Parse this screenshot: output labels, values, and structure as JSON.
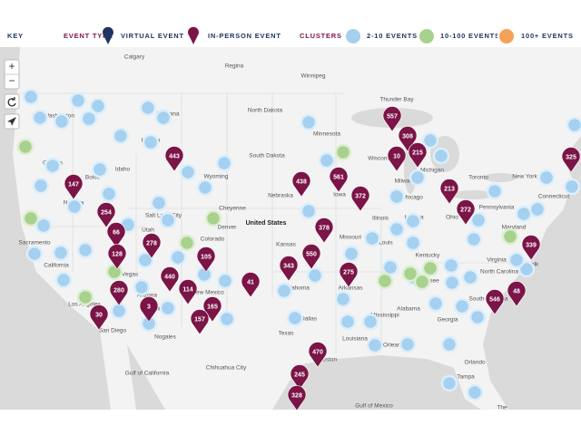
{
  "legend": {
    "key": "KEY",
    "event_type": "EVENT TYPE",
    "virtual": "VIRTUAL EVENT",
    "in_person": "IN-PERSON EVENT",
    "clusters": "CLUSTERS",
    "small": "2-10 EVENTS",
    "medium": "10-100 EVENTS",
    "large": "100+ EVENTS"
  },
  "controls": {
    "zoom_in": "+",
    "zoom_out": "−"
  },
  "map": {
    "labels": [
      "Calgary",
      "Regina",
      "Winnipeg",
      "Thunder Bay",
      "Washington",
      "Montana",
      "North Dakota",
      "Minnesota",
      "Helena",
      "Oregon",
      "Idaho",
      "Boise",
      "South Dakota",
      "Wisconsin",
      "Michigan",
      "Wyoming",
      "Milwaukee",
      "Nebraska",
      "Iowa",
      "Chicago",
      "Ohio",
      "Illinois",
      "Indiana",
      "Nevada",
      "Utah",
      "Salt Lake City",
      "Cheyenne",
      "Denver",
      "Colorado",
      "United States",
      "Kansas",
      "Missouri",
      "St. Louis",
      "Kentucky",
      "Virginia",
      "Sacramento",
      "California",
      "Las Vegas",
      "Arizona",
      "Phoenix",
      "New Mexico",
      "Oklahoma",
      "Arkansas",
      "Tennessee",
      "North Carolina",
      "South Carolina",
      "Mississippi",
      "Alabama",
      "Georgia",
      "Texas",
      "Louisiana",
      "Los Angeles",
      "San Diego",
      "Nogales",
      "Chihuahua City",
      "Dallas",
      "Houston",
      "New Orleans",
      "Orlando",
      "Tampa",
      "New York",
      "Pennsylvania",
      "Maryland",
      "Norfolk",
      "Connecticut",
      "Toronto",
      "Gulf of California",
      "Gulf of Mexico",
      "The"
    ],
    "pins": [
      557,
      308,
      10,
      215,
      443,
      147,
      438,
      561,
      372,
      213,
      272,
      254,
      66,
      378,
      278,
      128,
      550,
      339,
      105,
      343,
      275,
      440,
      41,
      280,
      114,
      48,
      546,
      3,
      165,
      157,
      30,
      470,
      245,
      328,
      325
    ]
  }
}
